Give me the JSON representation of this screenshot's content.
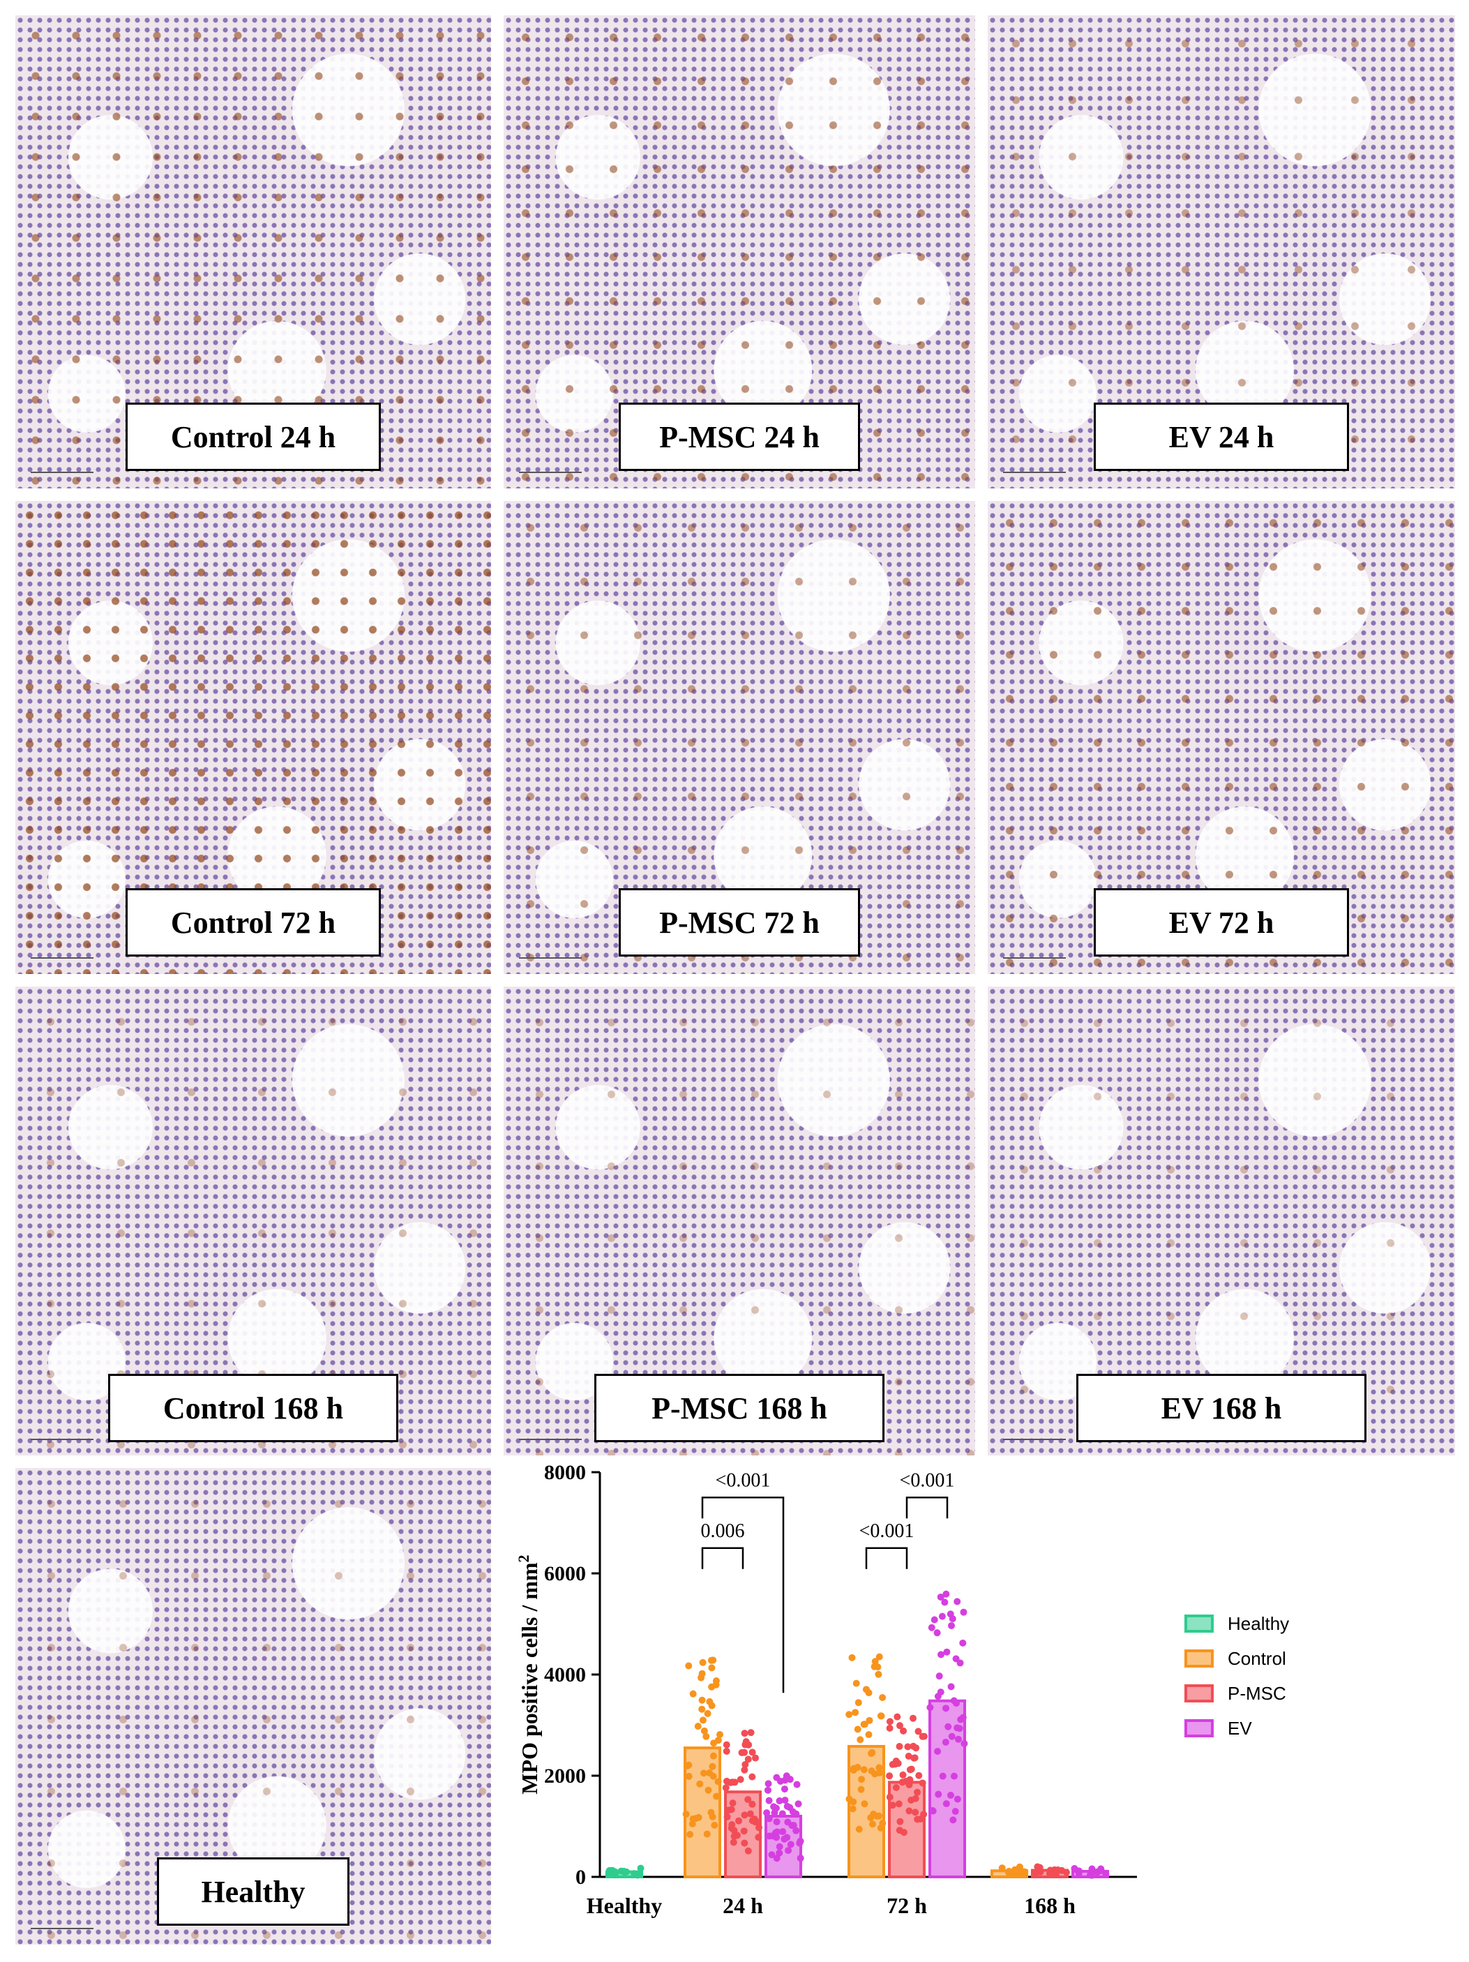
{
  "panels": [
    {
      "label": "Control 24 h",
      "stain_level": 0.55
    },
    {
      "label": "P-MSC 24 h",
      "stain_level": 0.5
    },
    {
      "label": "EV 24 h",
      "stain_level": 0.3
    },
    {
      "label": "Control 72 h",
      "stain_level": 0.75
    },
    {
      "label": "P-MSC 72 h",
      "stain_level": 0.35
    },
    {
      "label": "EV 72 h",
      "stain_level": 0.5
    },
    {
      "label": "Control 168 h",
      "stain_level": 0.08
    },
    {
      "label": "P-MSC 168 h",
      "stain_level": 0.06
    },
    {
      "label": "EV 168 h",
      "stain_level": 0.03
    },
    {
      "label": "Healthy",
      "stain_level": 0.06
    }
  ],
  "chart_data": {
    "type": "bar",
    "ylabel": "MPO positive cells / mm",
    "ylabel_superscript": "2",
    "ylim": [
      0,
      8000
    ],
    "yticks": [
      0,
      2000,
      4000,
      6000,
      8000
    ],
    "groups": [
      "Healthy",
      "24 h",
      "72 h",
      "168 h"
    ],
    "series": [
      {
        "name": "Healthy",
        "color": "#2ecc8f",
        "values": [
          100,
          null,
          null,
          null
        ]
      },
      {
        "name": "Control",
        "color": "#f7941d",
        "values": [
          null,
          2550,
          2580,
          120
        ]
      },
      {
        "name": "P-MSC",
        "color": "#f24d55",
        "values": [
          null,
          1680,
          1870,
          130
        ]
      },
      {
        "name": "EV",
        "color": "#d53fe0",
        "values": [
          null,
          1200,
          3480,
          110
        ]
      }
    ],
    "significance": [
      {
        "group": "24 h",
        "from": "Control",
        "to": "P-MSC",
        "label": "0.006",
        "y": 6500
      },
      {
        "group": "24 h",
        "from": "Control",
        "to": "EV",
        "label": "<0.001",
        "y": 7500
      },
      {
        "group": "72 h",
        "from": "Control",
        "to": "P-MSC",
        "label": "<0.001",
        "y": 6500
      },
      {
        "group": "72 h",
        "from": "P-MSC",
        "to": "EV",
        "label": "<0.001",
        "y": 7500
      }
    ],
    "legend_position": "right"
  }
}
